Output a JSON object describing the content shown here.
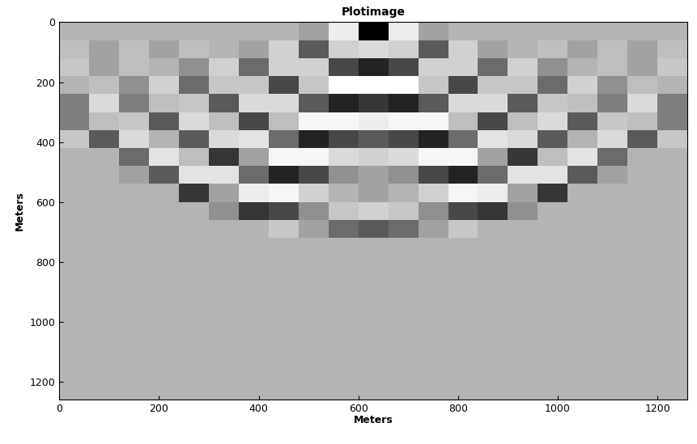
{
  "chart_data": {
    "type": "heatmap",
    "title": "Plotimage",
    "x_label": "Meters",
    "y_label": "Meters",
    "xlim": [
      0,
      1260
    ],
    "ylim": [
      1260,
      0
    ],
    "xticks": [
      0,
      200,
      400,
      600,
      800,
      1000,
      1200
    ],
    "yticks": [
      0,
      200,
      400,
      600,
      800,
      1000,
      1200
    ],
    "x_edges": [
      0,
      60,
      120,
      180,
      240,
      300,
      360,
      420,
      480,
      540,
      600,
      660,
      720,
      780,
      840,
      900,
      960,
      1020,
      1080,
      1140,
      1200,
      1260
    ],
    "y_edges": [
      0,
      60,
      120,
      180,
      240,
      300,
      360,
      420,
      480,
      540,
      600,
      660,
      720,
      780,
      840,
      900,
      960,
      1020,
      1080,
      1140,
      1200,
      1260
    ],
    "cells": [
      [
        0,
        0,
        0,
        0,
        0,
        0,
        0,
        0,
        -0.1,
        0.6,
        -1,
        0.6,
        -0.1,
        0,
        0,
        0,
        0,
        0,
        0,
        0,
        0
      ],
      [
        0.1,
        -0.1,
        0.1,
        -0.1,
        0.1,
        0,
        -0.1,
        0.3,
        -0.5,
        0.3,
        0.4,
        0.3,
        -0.5,
        0.3,
        -0.1,
        0,
        0.1,
        -0.1,
        0.1,
        -0.1,
        0.1
      ],
      [
        0.2,
        -0.1,
        0.1,
        0,
        -0.2,
        0.3,
        -0.4,
        0.3,
        0.3,
        -0.6,
        -0.8,
        -0.6,
        0.3,
        0.3,
        -0.4,
        0.3,
        -0.2,
        0,
        0.1,
        -0.1,
        0.2
      ],
      [
        0,
        0.1,
        -0.2,
        0.3,
        -0.4,
        0.2,
        0.2,
        -0.6,
        0.2,
        0.8,
        0.8,
        0.8,
        0.2,
        -0.6,
        0.2,
        0.2,
        -0.4,
        0.3,
        -0.2,
        0.1,
        0
      ],
      [
        -0.3,
        0.4,
        -0.3,
        0.1,
        0.2,
        -0.5,
        0.4,
        0.4,
        -0.5,
        -0.8,
        -0.7,
        -0.8,
        -0.5,
        0.4,
        0.4,
        -0.5,
        0.2,
        0.1,
        -0.3,
        0.4,
        -0.3
      ],
      [
        -0.3,
        0.1,
        0.2,
        -0.5,
        0.4,
        0.1,
        -0.6,
        0.1,
        0.7,
        0.7,
        0.6,
        0.7,
        0.7,
        0.1,
        -0.6,
        0.1,
        0.4,
        -0.5,
        0.2,
        0.1,
        -0.3
      ],
      [
        0.2,
        -0.5,
        0.4,
        0,
        -0.5,
        0.4,
        0.5,
        -0.4,
        -0.8,
        -0.6,
        -0.5,
        -0.6,
        -0.8,
        -0.4,
        0.5,
        0.4,
        -0.5,
        0,
        0.4,
        -0.5,
        0.2
      ],
      [
        0,
        0,
        -0.4,
        0.5,
        0.1,
        -0.7,
        -0.1,
        0.7,
        0.7,
        0.4,
        0.3,
        0.4,
        0.7,
        0.7,
        -0.1,
        -0.7,
        0.1,
        0.5,
        -0.4,
        0,
        0
      ],
      [
        0,
        0,
        -0.1,
        -0.5,
        0.5,
        0.5,
        -0.4,
        -0.8,
        -0.6,
        -0.2,
        -0.1,
        -0.2,
        -0.6,
        -0.8,
        -0.4,
        0.5,
        0.5,
        -0.5,
        -0.1,
        0,
        0
      ],
      [
        0,
        0,
        0,
        0,
        -0.7,
        -0.1,
        0.6,
        0.7,
        0.3,
        0,
        -0.1,
        0,
        0.3,
        0.7,
        0.6,
        -0.1,
        -0.7,
        0,
        0,
        0,
        0
      ],
      [
        0,
        0,
        0,
        0,
        0,
        -0.2,
        -0.7,
        -0.6,
        -0.2,
        0.2,
        0.3,
        0.2,
        -0.2,
        -0.6,
        -0.7,
        -0.2,
        0,
        0,
        0,
        0,
        0
      ],
      [
        0,
        0,
        0,
        0,
        0,
        0,
        0,
        0.2,
        -0.1,
        -0.4,
        -0.5,
        -0.4,
        -0.1,
        0.2,
        0,
        0,
        0,
        0,
        0,
        0,
        0
      ],
      [
        0,
        0,
        0,
        0,
        0,
        0,
        0,
        0,
        0,
        0,
        0,
        0,
        0,
        0,
        0,
        0,
        0,
        0,
        0,
        0,
        0
      ],
      [
        0,
        0,
        0,
        0,
        0,
        0,
        0,
        0,
        0,
        0,
        0,
        0,
        0,
        0,
        0,
        0,
        0,
        0,
        0,
        0,
        0
      ],
      [
        0,
        0,
        0,
        0,
        0,
        0,
        0,
        0,
        0,
        0,
        0,
        0,
        0,
        0,
        0,
        0,
        0,
        0,
        0,
        0,
        0
      ],
      [
        0,
        0,
        0,
        0,
        0,
        0,
        0,
        0,
        0,
        0,
        0,
        0,
        0,
        0,
        0,
        0,
        0,
        0,
        0,
        0,
        0
      ],
      [
        0,
        0,
        0,
        0,
        0,
        0,
        0,
        0,
        0,
        0,
        0,
        0,
        0,
        0,
        0,
        0,
        0,
        0,
        0,
        0,
        0
      ],
      [
        0,
        0,
        0,
        0,
        0,
        0,
        0,
        0,
        0,
        0,
        0,
        0,
        0,
        0,
        0,
        0,
        0,
        0,
        0,
        0,
        0
      ],
      [
        0,
        0,
        0,
        0,
        0,
        0,
        0,
        0,
        0,
        0,
        0,
        0,
        0,
        0,
        0,
        0,
        0,
        0,
        0,
        0,
        0
      ],
      [
        0,
        0,
        0,
        0,
        0,
        0,
        0,
        0,
        0,
        0,
        0,
        0,
        0,
        0,
        0,
        0,
        0,
        0,
        0,
        0,
        0
      ],
      [
        0,
        0,
        0,
        0,
        0,
        0,
        0,
        0,
        0,
        0,
        0,
        0,
        0,
        0,
        0,
        0,
        0,
        0,
        0,
        0,
        0
      ]
    ]
  }
}
